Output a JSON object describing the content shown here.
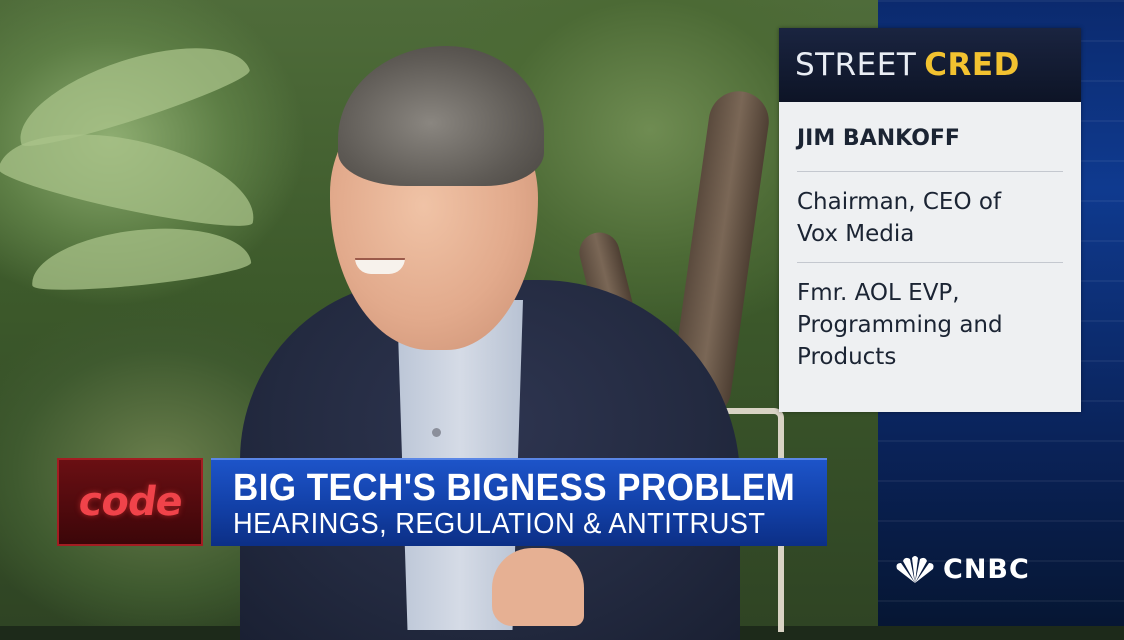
{
  "lower_third": {
    "logo_text": "code",
    "headline": "BIG TECH'S BIGNESS PROBLEM",
    "subheadline": "HEARINGS, REGULATION & ANTITRUST"
  },
  "street_cred": {
    "header_word1": "STREET",
    "header_word2": "CRED",
    "name": "JIM BANKOFF",
    "title_line1": "Chairman, CEO of",
    "title_line2": "Vox Media",
    "former_line1": "Fmr. AOL EVP,",
    "former_line2": "Programming and",
    "former_line3": "Products"
  },
  "network": {
    "logo_text": "CNBC",
    "logo_icon": "peacock-icon"
  },
  "colors": {
    "banner_blue": "#1d54c9",
    "code_red": "#f0434a",
    "cred_yellow": "#f2c230"
  }
}
